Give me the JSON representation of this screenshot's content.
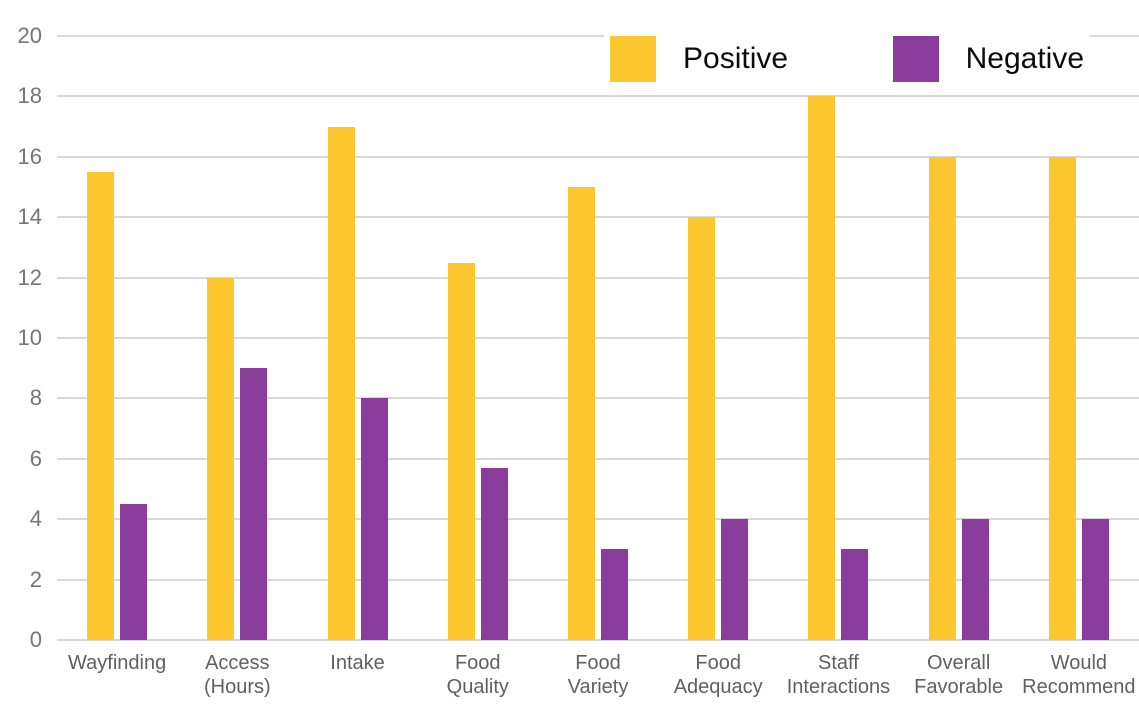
{
  "chart_data": {
    "type": "bar",
    "title": "",
    "xlabel": "",
    "ylabel": "",
    "categories": [
      "Wayfinding",
      "Access (Hours)",
      "Intake",
      "Food Quality",
      "Food Variety",
      "Food Adequacy",
      "Staff Interactions",
      "Overall Favorable",
      "Would Recommend"
    ],
    "category_lines": [
      [
        "Wayfinding"
      ],
      [
        "Access",
        "(Hours)"
      ],
      [
        "Intake"
      ],
      [
        "Food",
        "Quality"
      ],
      [
        "Food",
        "Variety"
      ],
      [
        "Food",
        "Adequacy"
      ],
      [
        "Staff",
        "Interactions"
      ],
      [
        "Overall",
        "Favorable"
      ],
      [
        "Would",
        "Recommend"
      ]
    ],
    "series": [
      {
        "name": "Positive",
        "color": "#FDC730",
        "values": [
          15.5,
          12,
          17,
          12.5,
          15,
          14,
          18,
          16,
          16
        ]
      },
      {
        "name": "Negative",
        "color": "#8B3D9E",
        "values": [
          4.5,
          9,
          8,
          5.7,
          3,
          4,
          3,
          4,
          4
        ]
      }
    ],
    "ylim": [
      0,
      20
    ],
    "yticks": [
      0,
      2,
      4,
      6,
      8,
      10,
      12,
      14,
      16,
      18,
      20
    ],
    "grid": true,
    "gridline_color": "#d8d8d8",
    "axis_label_color": "#757575",
    "category_label_color": "#606060",
    "legend_position": "top-right",
    "legend_text_color": "#0b0b0b",
    "background_color": "#ffffff"
  }
}
